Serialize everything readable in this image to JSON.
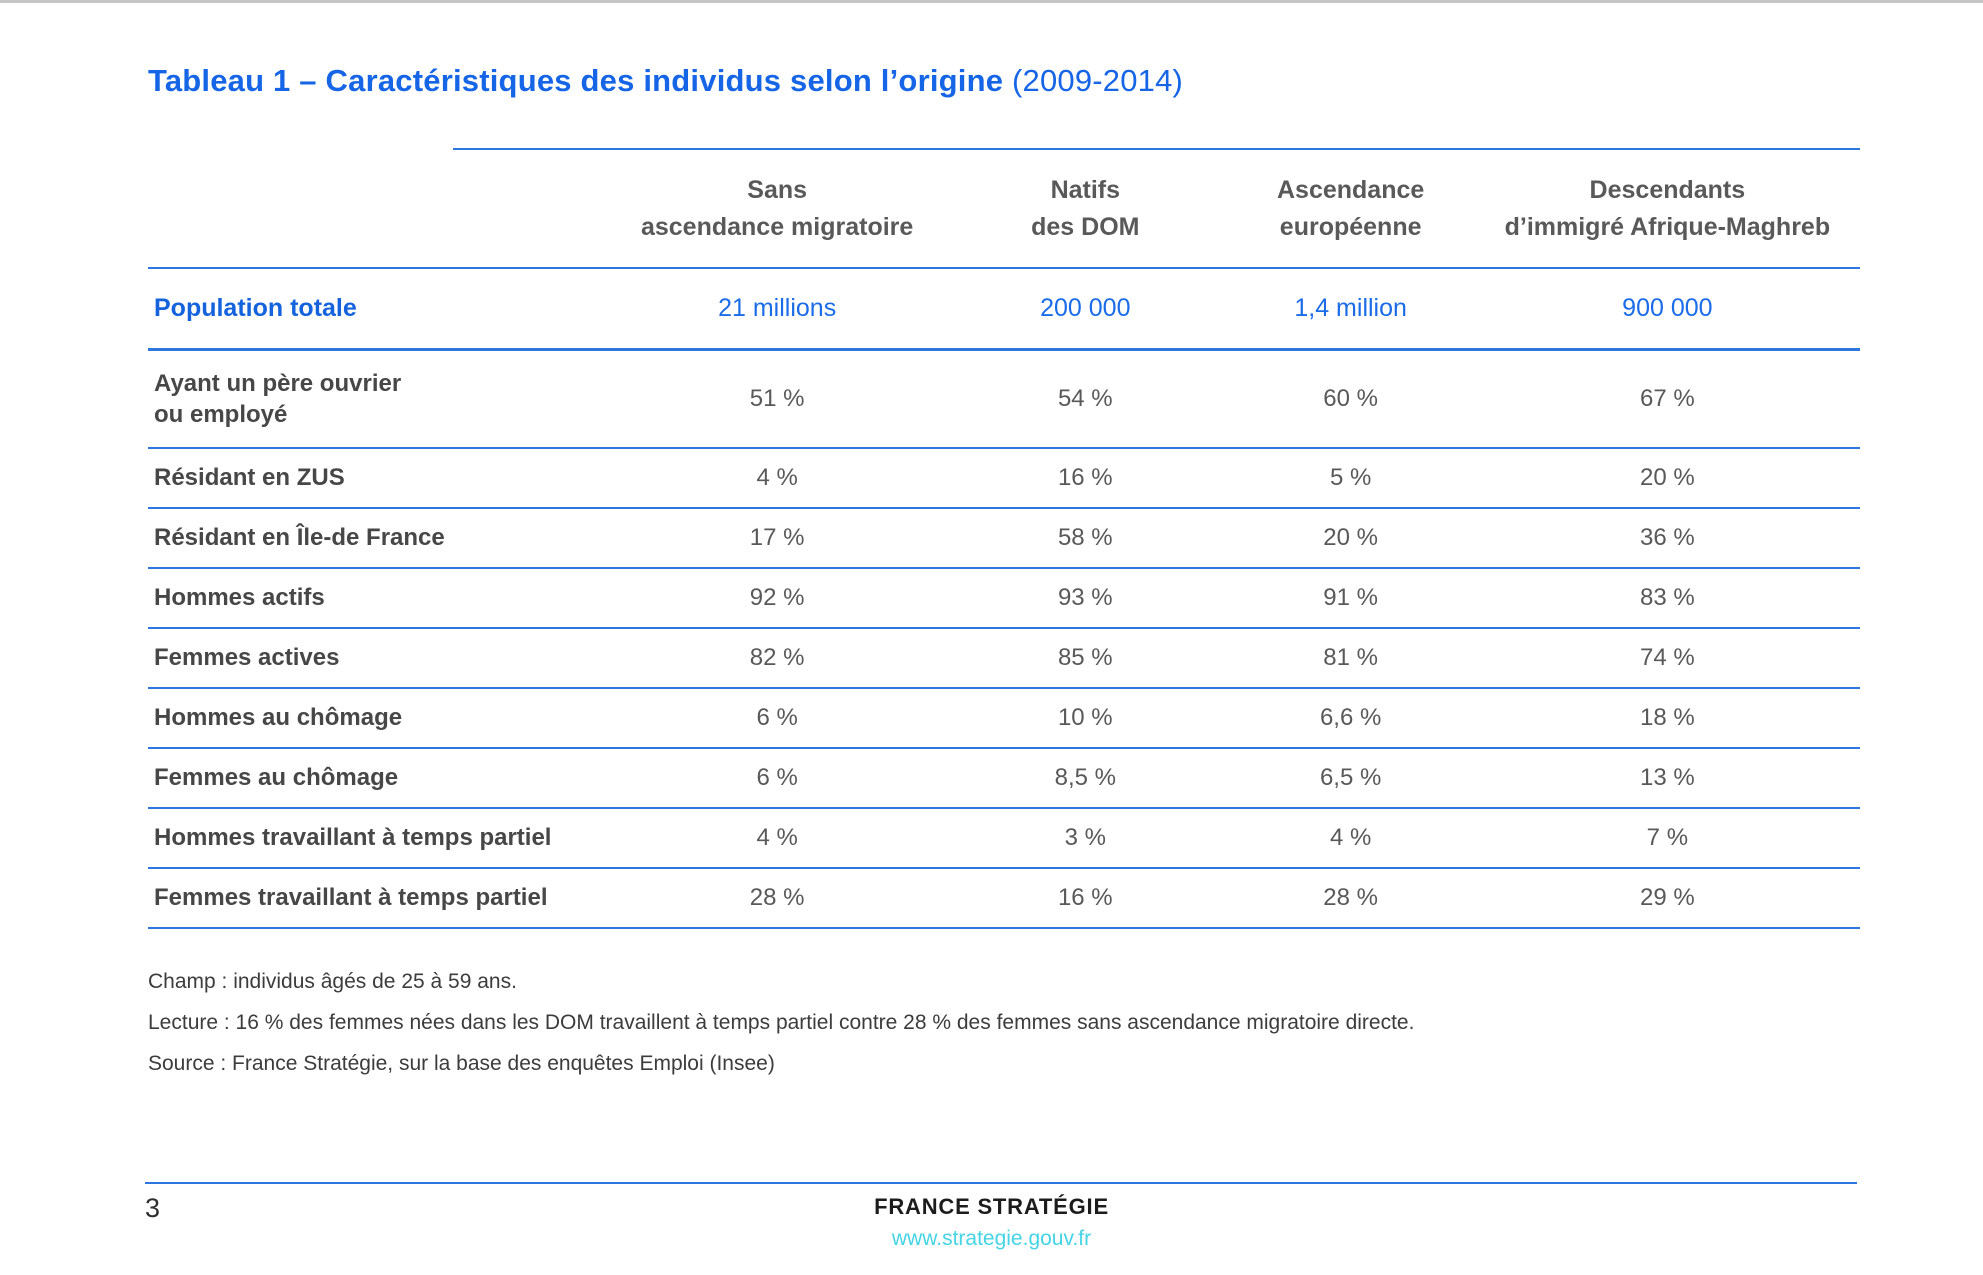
{
  "title": {
    "main": "Tableau 1 – Caractéristiques des individus selon l’origine",
    "suffix": " (2009-2014)"
  },
  "table": {
    "columns": [
      "Sans\nascendance migratoire",
      "Natifs\ndes DOM",
      "Ascendance\neuropéenne",
      "Descendants\nd’immigré Afrique-Maghreb"
    ],
    "population_row": {
      "label": "Population totale",
      "values": [
        "21 millions",
        "200 000",
        "1,4 million",
        "900 000"
      ]
    },
    "rows": [
      {
        "label": "Ayant un père ouvrier\nou employé",
        "values": [
          "51 %",
          "54 %",
          "60 %",
          "67 %"
        ]
      },
      {
        "label": "Résidant en ZUS",
        "values": [
          "4 %",
          "16 %",
          "5 %",
          "20 %"
        ]
      },
      {
        "label": "Résidant en Île-de France",
        "values": [
          "17 %",
          "58 %",
          "20 %",
          "36 %"
        ]
      },
      {
        "label": "Hommes actifs",
        "values": [
          "92 %",
          "93 %",
          "91 %",
          "83 %"
        ]
      },
      {
        "label": "Femmes actives",
        "values": [
          "82 %",
          "85 %",
          "81 %",
          "74 %"
        ]
      },
      {
        "label": "Hommes au chômage",
        "values": [
          "6 %",
          "10 %",
          "6,6 %",
          "18 %"
        ]
      },
      {
        "label": "Femmes au chômage",
        "values": [
          "6 %",
          "8,5 %",
          "6,5 %",
          "13 %"
        ]
      },
      {
        "label": "Hommes travaillant à temps partiel",
        "values": [
          "4 %",
          "3 %",
          "4 %",
          "7 %"
        ]
      },
      {
        "label": "Femmes travaillant à temps partiel",
        "values": [
          "28 %",
          "16 %",
          "28 %",
          "29 %"
        ]
      }
    ]
  },
  "notes": {
    "champ": "Champ : individus âgés de 25 à 59 ans.",
    "lecture": "Lecture : 16 % des femmes nées dans les DOM travaillent à temps partiel contre 28 % des femmes sans ascendance migratoire directe.",
    "source": "Source : France Stratégie, sur la base des enquêtes Emploi (Insee)"
  },
  "footer": {
    "page_number": "3",
    "brand": "FRANCE STRATÉGIE",
    "url": "www.strategie.gouv.fr"
  },
  "colors": {
    "accent_blue": "#1565e6",
    "rule_blue": "#2d76e0",
    "text_gray": "#595959",
    "link_cyan": "#44d4e6"
  }
}
